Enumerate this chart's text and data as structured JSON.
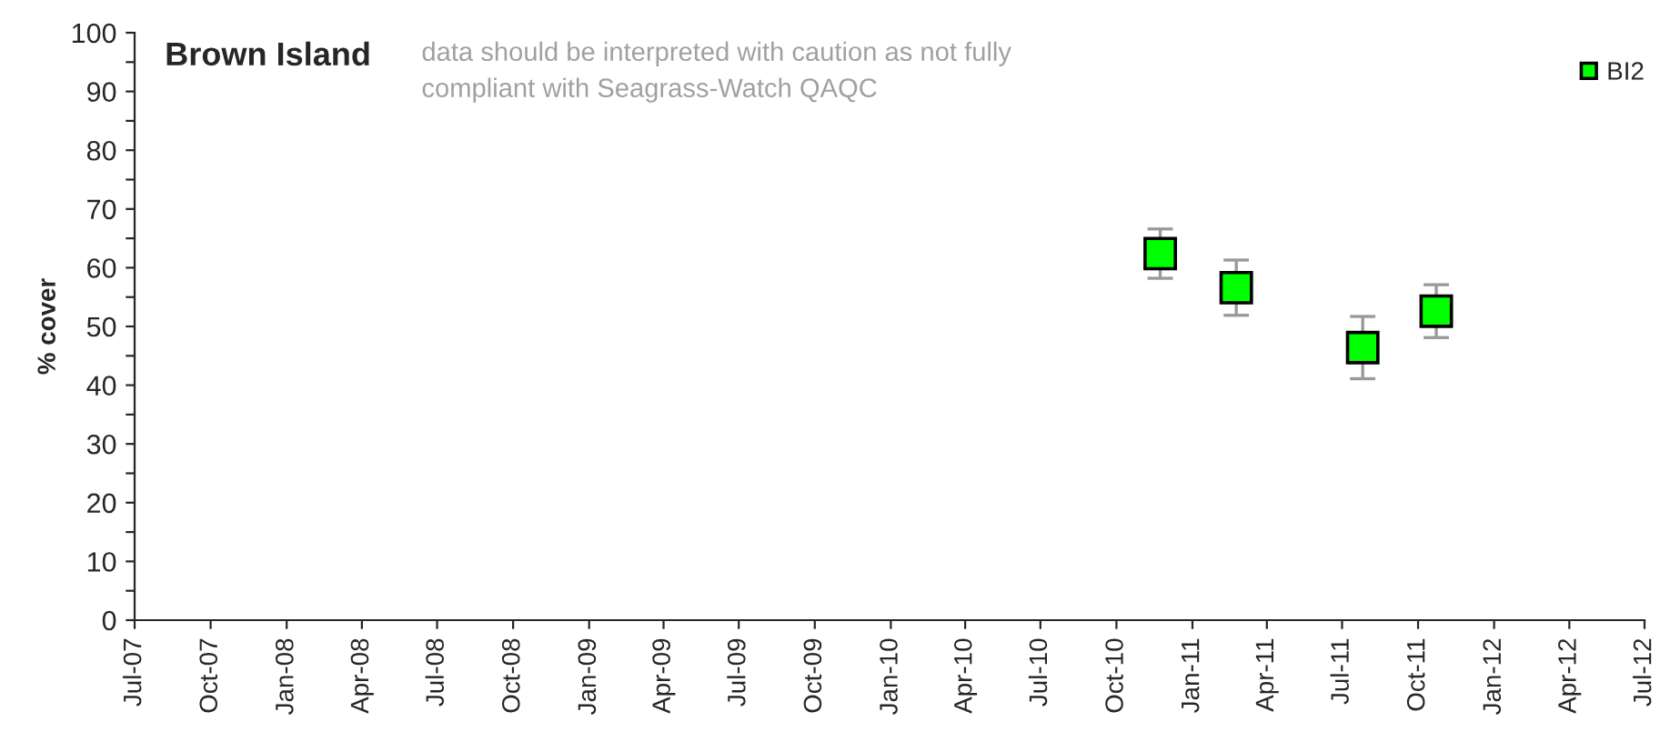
{
  "chart_data": {
    "type": "scatter",
    "title": "Brown Island",
    "ylabel": "% cover",
    "annotations": [
      "data should be interpreted with caution as not fully\ncompliant with Seagrass-Watch QAQC"
    ],
    "x": [
      "2010-11-23",
      "2011-02-23",
      "2011-07-26",
      "2011-10-23"
    ],
    "series": [
      {
        "name": "BI2",
        "color": "#00ff00",
        "values": [
          62.4,
          56.6,
          46.4,
          52.6
        ],
        "errors": [
          4.2,
          4.7,
          5.3,
          4.5
        ]
      }
    ],
    "xlim": [
      "2007-07-01",
      "2012-07-01"
    ],
    "xticks": [
      {
        "value": "2007-07-01",
        "label": "Jul-07"
      },
      {
        "value": "2007-10-01",
        "label": "Oct-07"
      },
      {
        "value": "2008-01-01",
        "label": "Jan-08"
      },
      {
        "value": "2008-04-01",
        "label": "Apr-08"
      },
      {
        "value": "2008-07-01",
        "label": "Jul-08"
      },
      {
        "value": "2008-10-01",
        "label": "Oct-08"
      },
      {
        "value": "2009-01-01",
        "label": "Jan-09"
      },
      {
        "value": "2009-04-01",
        "label": "Apr-09"
      },
      {
        "value": "2009-07-01",
        "label": "Jul-09"
      },
      {
        "value": "2009-10-01",
        "label": "Oct-09"
      },
      {
        "value": "2010-01-01",
        "label": "Jan-10"
      },
      {
        "value": "2010-04-01",
        "label": "Apr-10"
      },
      {
        "value": "2010-07-01",
        "label": "Jul-10"
      },
      {
        "value": "2010-10-01",
        "label": "Oct-10"
      },
      {
        "value": "2011-01-01",
        "label": "Jan-11"
      },
      {
        "value": "2011-04-01",
        "label": "Apr-11"
      },
      {
        "value": "2011-07-01",
        "label": "Jul-11"
      },
      {
        "value": "2011-10-01",
        "label": "Oct-11"
      },
      {
        "value": "2012-01-01",
        "label": "Jan-12"
      },
      {
        "value": "2012-04-01",
        "label": "Apr-12"
      },
      {
        "value": "2012-07-01",
        "label": "Jul-12"
      }
    ],
    "ylim": [
      0,
      100
    ],
    "yticks": [
      0,
      {
        "value": 5,
        "label": null
      },
      10,
      {
        "value": 15,
        "label": null
      },
      20,
      {
        "value": 25,
        "label": null
      },
      30,
      {
        "value": 35,
        "label": null
      },
      40,
      {
        "value": 45,
        "label": null
      },
      50,
      {
        "value": 55,
        "label": null
      },
      60,
      {
        "value": 65,
        "label": null
      },
      70,
      {
        "value": 75,
        "label": null
      },
      80,
      {
        "value": 85,
        "label": null
      },
      90,
      {
        "value": 95,
        "label": null
      },
      100
    ],
    "marker": "square",
    "grid": false,
    "legend": "top right"
  }
}
